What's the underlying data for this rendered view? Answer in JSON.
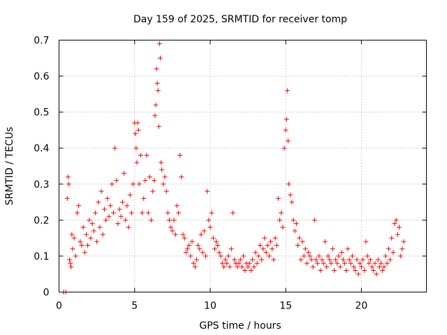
{
  "chart_data": {
    "type": "scatter",
    "title": "Day 159 of 2025, SRMTID for receiver tomp",
    "xlabel": "GPS time / hours",
    "ylabel": "SRMTID / TECUs",
    "xlim": [
      0,
      24.3
    ],
    "ylim": [
      0,
      0.7
    ],
    "x_ticks": [
      0,
      5,
      10,
      15,
      20
    ],
    "x_tick_labels": [
      "0",
      "5",
      "10",
      "15",
      "20"
    ],
    "y_ticks": [
      0,
      0.1,
      0.2,
      0.3,
      0.4,
      0.5,
      0.6,
      0.7
    ],
    "y_tick_labels": [
      "0",
      "0.1",
      "0.2",
      "0.3",
      "0.4",
      "0.5",
      "0.6",
      "0.7"
    ],
    "grid": true,
    "marker": "+",
    "color": "#ff0000",
    "series": [
      {
        "name": "SRMTID",
        "x": [
          0.3,
          0.45,
          0.55,
          0.6,
          0.65,
          0.7,
          0.75,
          0.8,
          0.85,
          0.9,
          1.0,
          1.1,
          1.2,
          1.3,
          1.4,
          1.5,
          1.6,
          1.7,
          1.8,
          1.9,
          2.0,
          2.1,
          2.2,
          2.3,
          2.4,
          2.5,
          2.6,
          2.7,
          2.8,
          2.9,
          3.0,
          3.1,
          3.2,
          3.3,
          3.4,
          3.5,
          3.6,
          3.7,
          3.8,
          3.9,
          4.0,
          4.1,
          4.2,
          4.3,
          4.4,
          4.5,
          4.6,
          4.7,
          4.8,
          4.9,
          5.0,
          5.05,
          5.1,
          5.15,
          5.2,
          5.25,
          5.3,
          5.4,
          5.5,
          5.6,
          5.7,
          5.8,
          5.9,
          6.0,
          6.1,
          6.2,
          6.3,
          6.35,
          6.4,
          6.45,
          6.5,
          6.55,
          6.6,
          6.65,
          6.7,
          6.75,
          6.8,
          6.9,
          7.0,
          7.1,
          7.2,
          7.3,
          7.4,
          7.5,
          7.6,
          7.7,
          7.8,
          7.9,
          8.0,
          8.1,
          8.2,
          8.3,
          8.4,
          8.5,
          8.6,
          8.7,
          8.8,
          8.9,
          9.0,
          9.1,
          9.2,
          9.3,
          9.4,
          9.5,
          9.6,
          9.7,
          9.8,
          9.9,
          10.0,
          10.1,
          10.2,
          10.3,
          10.4,
          10.5,
          10.6,
          10.7,
          10.8,
          10.9,
          11.0,
          11.1,
          11.2,
          11.3,
          11.4,
          11.5,
          11.6,
          11.7,
          11.8,
          11.9,
          12.0,
          12.1,
          12.2,
          12.3,
          12.4,
          12.5,
          12.6,
          12.7,
          12.8,
          12.9,
          13.0,
          13.1,
          13.2,
          13.3,
          13.4,
          13.5,
          13.6,
          13.7,
          13.8,
          13.9,
          14.0,
          14.1,
          14.2,
          14.3,
          14.4,
          14.5,
          14.6,
          14.7,
          14.8,
          14.9,
          15.0,
          15.05,
          15.1,
          15.15,
          15.2,
          15.3,
          15.4,
          15.5,
          15.6,
          15.7,
          15.8,
          15.9,
          16.0,
          16.1,
          16.2,
          16.3,
          16.4,
          16.5,
          16.6,
          16.7,
          16.8,
          16.9,
          17.0,
          17.1,
          17.2,
          17.3,
          17.4,
          17.5,
          17.6,
          17.7,
          17.8,
          17.9,
          18.0,
          18.1,
          18.2,
          18.3,
          18.4,
          18.5,
          18.6,
          18.7,
          18.8,
          18.9,
          19.0,
          19.1,
          19.2,
          19.3,
          19.4,
          19.5,
          19.6,
          19.7,
          19.8,
          19.9,
          20.0,
          20.1,
          20.2,
          20.3,
          20.4,
          20.5,
          20.6,
          20.7,
          20.8,
          20.9,
          21.0,
          21.1,
          21.2,
          21.3,
          21.4,
          21.5,
          21.6,
          21.7,
          21.8,
          21.9,
          22.0,
          22.1,
          22.2,
          22.3,
          22.4,
          22.5,
          22.6,
          22.7,
          22.8
        ],
        "y": [
          0.0,
          0.0,
          0.26,
          0.32,
          0.3,
          0.09,
          0.08,
          0.07,
          0.16,
          0.12,
          0.15,
          0.1,
          0.22,
          0.24,
          0.14,
          0.13,
          0.18,
          0.11,
          0.16,
          0.13,
          0.2,
          0.15,
          0.19,
          0.17,
          0.22,
          0.14,
          0.25,
          0.18,
          0.28,
          0.16,
          0.23,
          0.2,
          0.26,
          0.21,
          0.24,
          0.3,
          0.22,
          0.4,
          0.31,
          0.19,
          0.23,
          0.21,
          0.25,
          0.33,
          0.2,
          0.24,
          0.18,
          0.27,
          0.22,
          0.3,
          0.47,
          0.44,
          0.4,
          0.36,
          0.47,
          0.45,
          0.3,
          0.38,
          0.22,
          0.26,
          0.31,
          0.38,
          0.22,
          0.32,
          0.2,
          0.28,
          0.31,
          0.49,
          0.52,
          0.62,
          0.58,
          0.56,
          0.46,
          0.69,
          0.65,
          0.36,
          0.34,
          0.3,
          0.32,
          0.28,
          0.22,
          0.2,
          0.18,
          0.17,
          0.2,
          0.16,
          0.24,
          0.22,
          0.38,
          0.32,
          0.16,
          0.15,
          0.11,
          0.12,
          0.13,
          0.1,
          0.14,
          0.08,
          0.07,
          0.09,
          0.13,
          0.12,
          0.16,
          0.11,
          0.17,
          0.1,
          0.28,
          0.2,
          0.18,
          0.22,
          0.15,
          0.12,
          0.14,
          0.13,
          0.11,
          0.1,
          0.08,
          0.07,
          0.09,
          0.08,
          0.1,
          0.07,
          0.12,
          0.22,
          0.09,
          0.08,
          0.07,
          0.08,
          0.09,
          0.07,
          0.1,
          0.06,
          0.08,
          0.07,
          0.08,
          0.06,
          0.09,
          0.07,
          0.11,
          0.08,
          0.1,
          0.13,
          0.09,
          0.12,
          0.15,
          0.11,
          0.13,
          0.1,
          0.14,
          0.12,
          0.09,
          0.15,
          0.13,
          0.26,
          0.2,
          0.22,
          0.18,
          0.4,
          0.45,
          0.48,
          0.56,
          0.42,
          0.3,
          0.27,
          0.25,
          0.2,
          0.17,
          0.19,
          0.13,
          0.15,
          0.09,
          0.14,
          0.1,
          0.12,
          0.08,
          0.11,
          0.1,
          0.09,
          0.07,
          0.2,
          0.09,
          0.08,
          0.1,
          0.06,
          0.09,
          0.08,
          0.14,
          0.07,
          0.1,
          0.09,
          0.08,
          0.12,
          0.06,
          0.09,
          0.08,
          0.1,
          0.07,
          0.11,
          0.09,
          0.08,
          0.06,
          0.12,
          0.09,
          0.08,
          0.1,
          0.07,
          0.06,
          0.09,
          0.05,
          0.08,
          0.07,
          0.09,
          0.06,
          0.14,
          0.1,
          0.08,
          0.09,
          0.07,
          0.06,
          0.08,
          0.05,
          0.09,
          0.07,
          0.08,
          0.06,
          0.07,
          0.1,
          0.08,
          0.12,
          0.09,
          0.15,
          0.11,
          0.19,
          0.2,
          0.16,
          0.18,
          0.1,
          0.12,
          0.14
        ]
      }
    ]
  }
}
